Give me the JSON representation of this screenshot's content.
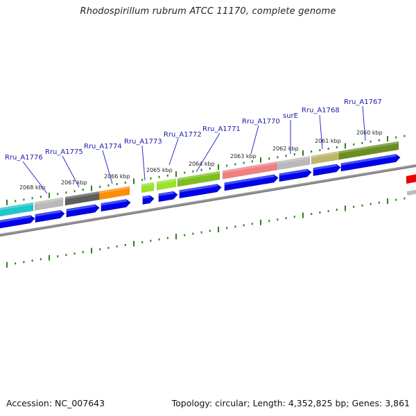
{
  "title": "Rhodospirillum rubrum ATCC 11170, complete genome",
  "footer": {
    "accession": "Accession: NC_007643",
    "summary": "Topology: circular; Length: 4,352,825 bp; Genes: 3,861"
  },
  "kbp_labels": [
    "2068 kbp",
    "2067 kbp",
    "2066 kbp",
    "2065 kbp",
    "2064 kbp",
    "2063 kbp",
    "2062 kbp",
    "2061 kbp",
    "2060 kbp"
  ],
  "gene_labels": [
    "Rru_A1776",
    "Rru_A1775",
    "Rru_A1774",
    "Rru_A1773",
    "Rru_A1772",
    "Rru_A1771",
    "Rru_A1770",
    "surE",
    "Rru_A1768",
    "Rru_A1767"
  ],
  "colors": {
    "cds": "#0000ee",
    "backbone": "#8a8a8a",
    "tick": "#2e7d1e",
    "label": "#1a1aa6",
    "leader": "#2b2bd0",
    "feature_cyan": "#1fc6cc",
    "feature_gray": "#b9b9b9",
    "feature_dark": "#5e5e5e",
    "feature_orange": "#ff8c00",
    "feature_lime": "#9be32b",
    "feature_green": "#7cc01e",
    "feature_pink": "#f08080",
    "feature_khaki": "#bdb76b",
    "feature_olive": "#6b8e23",
    "feature_red": "#ee0000"
  }
}
